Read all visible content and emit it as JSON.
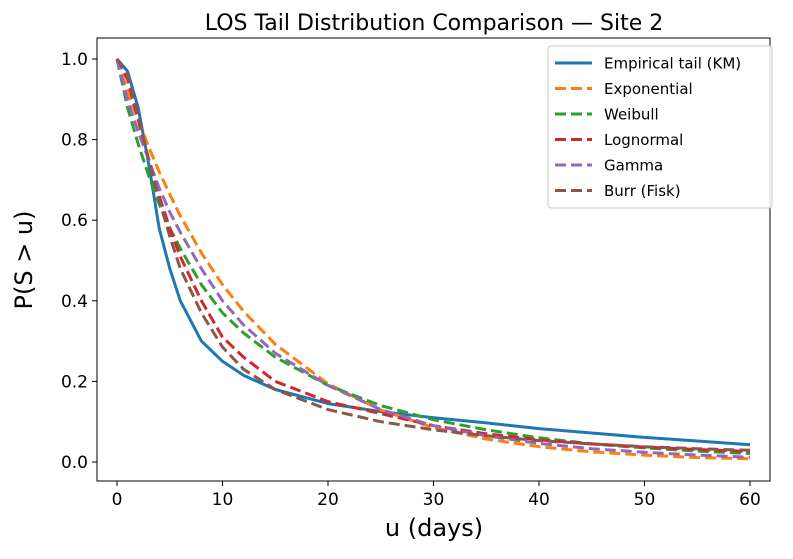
{
  "chart_data": {
    "type": "line",
    "title": "LOS Tail Distribution Comparison — Site 2",
    "xlabel": "u (days)",
    "ylabel": "P(S > u)",
    "xlim": [
      -5,
      63
    ],
    "ylim": [
      -0.05,
      1.055
    ],
    "xticks": [
      0,
      10,
      20,
      30,
      40,
      50,
      60
    ],
    "xtick_labels": [
      "0",
      "10",
      "20",
      "30",
      "40",
      "50",
      "60"
    ],
    "yticks": [
      0.0,
      0.2,
      0.4,
      0.6,
      0.8,
      1.0
    ],
    "ytick_labels": [
      "0.0",
      "0.2",
      "0.4",
      "0.6",
      "0.8",
      "1.0"
    ],
    "grid": false,
    "legend_position": "top-right",
    "x": [
      0,
      1,
      2,
      3,
      4,
      5,
      6,
      8,
      10,
      12,
      15,
      20,
      25,
      30,
      35,
      40,
      45,
      50,
      55,
      60
    ],
    "series": [
      {
        "name": "Empirical tail (KM)",
        "color": "#1f77b4",
        "style": "solid",
        "values": [
          1.0,
          0.97,
          0.88,
          0.74,
          0.58,
          0.48,
          0.4,
          0.3,
          0.25,
          0.215,
          0.18,
          0.145,
          0.125,
          0.11,
          0.097,
          0.083,
          0.072,
          0.061,
          0.052,
          0.043
        ]
      },
      {
        "name": "Exponential",
        "color": "#ff7f0e",
        "style": "dashed",
        "values": [
          1.0,
          0.921,
          0.849,
          0.782,
          0.72,
          0.664,
          0.611,
          0.519,
          0.44,
          0.374,
          0.292,
          0.194,
          0.129,
          0.085,
          0.057,
          0.038,
          0.025,
          0.017,
          0.011,
          0.008
        ]
      },
      {
        "name": "Weibull",
        "color": "#2ca02c",
        "style": "dashed",
        "values": [
          1.0,
          0.88,
          0.79,
          0.71,
          0.64,
          0.58,
          0.53,
          0.44,
          0.37,
          0.32,
          0.26,
          0.19,
          0.14,
          0.105,
          0.08,
          0.06,
          0.045,
          0.035,
          0.027,
          0.021
        ]
      },
      {
        "name": "Lognormal",
        "color": "#d62728",
        "style": "dashed",
        "values": [
          1.0,
          0.95,
          0.85,
          0.75,
          0.66,
          0.58,
          0.51,
          0.4,
          0.31,
          0.26,
          0.2,
          0.15,
          0.12,
          0.09,
          0.07,
          0.055,
          0.045,
          0.037,
          0.031,
          0.026
        ]
      },
      {
        "name": "Gamma",
        "color": "#9467bd",
        "style": "dashed",
        "values": [
          1.0,
          0.9,
          0.82,
          0.75,
          0.68,
          0.62,
          0.57,
          0.48,
          0.4,
          0.34,
          0.27,
          0.19,
          0.13,
          0.09,
          0.065,
          0.046,
          0.033,
          0.024,
          0.017,
          0.012
        ]
      },
      {
        "name": "Burr (Fisk)",
        "color": "#8c564b",
        "style": "dashed",
        "values": [
          1.0,
          0.96,
          0.86,
          0.75,
          0.65,
          0.56,
          0.48,
          0.37,
          0.285,
          0.23,
          0.18,
          0.13,
          0.1,
          0.08,
          0.065,
          0.053,
          0.045,
          0.038,
          0.033,
          0.029
        ]
      }
    ]
  }
}
